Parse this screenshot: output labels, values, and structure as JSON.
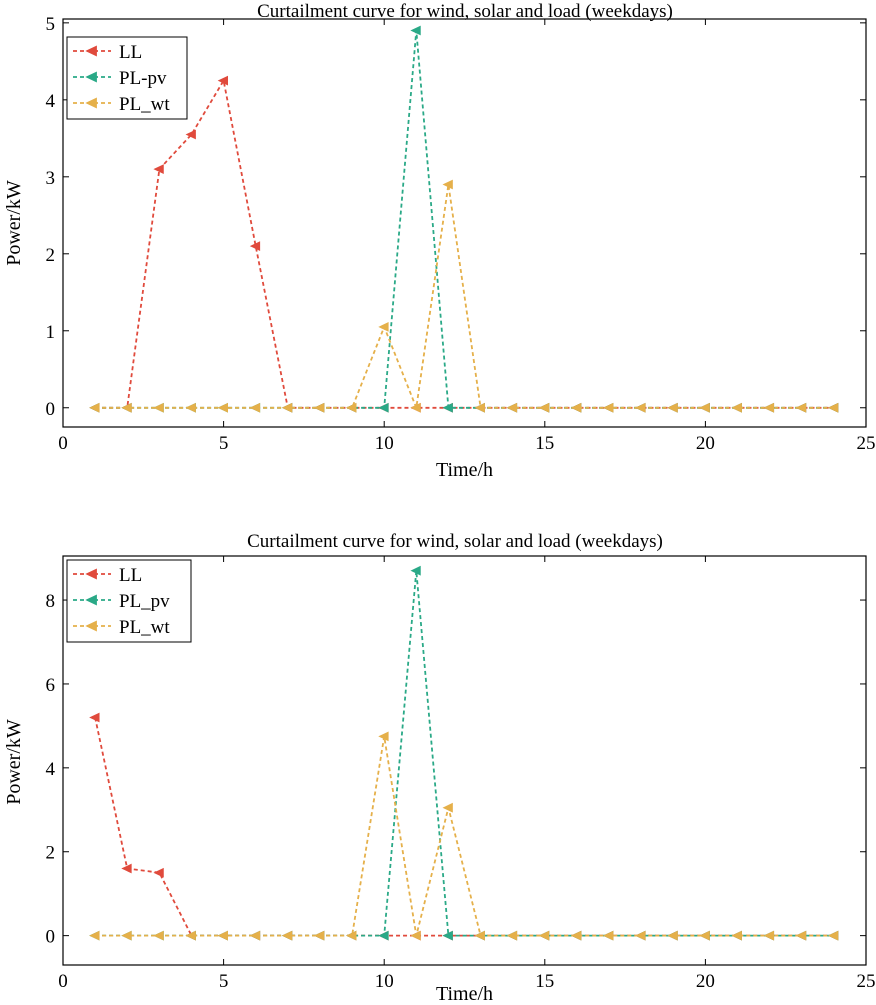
{
  "chart_data": [
    {
      "type": "line",
      "title": "Curtailment curve for wind, solar and load (weekdays)",
      "xlabel": "Time/h",
      "ylabel": "Power/kW",
      "xlim": [
        0,
        25
      ],
      "ylim": [
        -0.25,
        5.05
      ],
      "xticks": [
        0,
        5,
        10,
        15,
        20,
        25
      ],
      "yticks": [
        0,
        1,
        2,
        3,
        4,
        5
      ],
      "grid": false,
      "legend_position": "top-left",
      "series": [
        {
          "name": "LL",
          "color": "#e04a3c",
          "marker": "triangle-left",
          "x": [
            1,
            2,
            3,
            4,
            5,
            6,
            7,
            8,
            9,
            10,
            11,
            12,
            13,
            14,
            15,
            16,
            17,
            18,
            19,
            20,
            21,
            22,
            23,
            24
          ],
          "y": [
            0,
            0,
            3.1,
            3.55,
            4.25,
            2.1,
            0,
            0,
            0,
            0,
            0,
            0,
            0,
            0,
            0,
            0,
            0,
            0,
            0,
            0,
            0,
            0,
            0,
            0
          ]
        },
        {
          "name": "PL-pv",
          "color": "#2aa987",
          "marker": "triangle-left",
          "x": [
            1,
            2,
            3,
            4,
            5,
            6,
            7,
            8,
            9,
            10,
            11,
            12,
            13,
            14,
            15,
            16,
            17,
            18,
            19,
            20,
            21,
            22,
            23,
            24
          ],
          "y": [
            0,
            0,
            0,
            0,
            0,
            0,
            0,
            0,
            0,
            0,
            4.9,
            0,
            0,
            0,
            0,
            0,
            0,
            0,
            0,
            0,
            0,
            0,
            0,
            0
          ]
        },
        {
          "name": "PL_wt",
          "color": "#e5b04a",
          "marker": "triangle-left",
          "x": [
            1,
            2,
            3,
            4,
            5,
            6,
            7,
            8,
            9,
            10,
            11,
            12,
            13,
            14,
            15,
            16,
            17,
            18,
            19,
            20,
            21,
            22,
            23,
            24
          ],
          "y": [
            0,
            0,
            0,
            0,
            0,
            0,
            0,
            0,
            0,
            1.05,
            0,
            2.9,
            0,
            0,
            0,
            0,
            0,
            0,
            0,
            0,
            0,
            0,
            0,
            0
          ]
        }
      ]
    },
    {
      "type": "line",
      "title": "Curtailment curve for wind, solar and load (weekdays)",
      "xlabel": "Time/h",
      "ylabel": "Power/kW",
      "xlim": [
        0,
        25
      ],
      "ylim": [
        -0.7,
        9.05
      ],
      "xticks": [
        0,
        5,
        10,
        15,
        20,
        25
      ],
      "yticks": [
        0,
        2,
        4,
        6,
        8
      ],
      "grid": false,
      "legend_position": "top-left",
      "series": [
        {
          "name": "LL",
          "color": "#e04a3c",
          "marker": "triangle-left",
          "x": [
            1,
            2,
            3,
            4,
            5,
            6,
            7,
            8,
            9,
            10,
            11,
            12,
            13,
            14,
            15,
            16,
            17,
            18,
            19,
            20,
            21,
            22,
            23,
            24
          ],
          "y": [
            5.2,
            1.6,
            1.5,
            0,
            0,
            0,
            0,
            0,
            0,
            0,
            0,
            0,
            0,
            0,
            0,
            0,
            0,
            0,
            0,
            0,
            0,
            0,
            0,
            0
          ]
        },
        {
          "name": "PL_pv",
          "color": "#2aa987",
          "marker": "triangle-left",
          "x": [
            1,
            2,
            3,
            4,
            5,
            6,
            7,
            8,
            9,
            10,
            11,
            12,
            13,
            14,
            15,
            16,
            17,
            18,
            19,
            20,
            21,
            22,
            23,
            24
          ],
          "y": [
            0,
            0,
            0,
            0,
            0,
            0,
            0,
            0,
            0,
            0,
            8.7,
            0,
            0,
            0,
            0,
            0,
            0,
            0,
            0,
            0,
            0,
            0,
            0,
            0
          ]
        },
        {
          "name": "PL_wt",
          "color": "#e5b04a",
          "marker": "triangle-left",
          "x": [
            1,
            2,
            3,
            4,
            5,
            6,
            7,
            8,
            9,
            10,
            11,
            12,
            13,
            14,
            15,
            16,
            17,
            18,
            19,
            20,
            21,
            22,
            23,
            24
          ],
          "y": [
            0,
            0,
            0,
            0,
            0,
            0,
            0,
            0,
            0,
            4.75,
            0,
            3.05,
            0,
            0,
            0,
            0,
            0,
            0,
            0,
            0,
            0,
            0,
            0,
            0
          ]
        }
      ]
    }
  ]
}
